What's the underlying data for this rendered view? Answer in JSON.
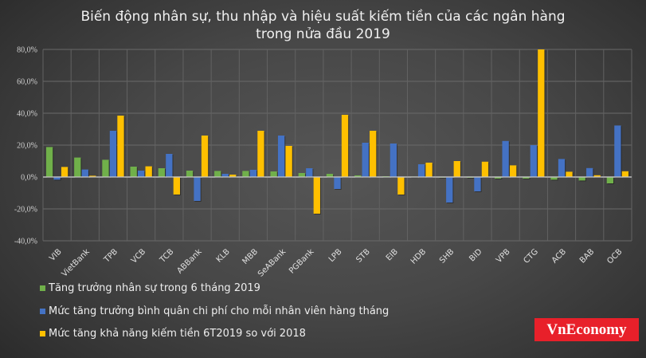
{
  "title": {
    "line1": "Biến động nhân sự, thu nhập và hiệu suất kiếm tiền của các ngân hàng",
    "line2": "trong nửa đầu 2019"
  },
  "logo": "VnEconomy",
  "legend": [
    {
      "label": "Tăng trưởng nhân sự trong 6 tháng 2019",
      "color": "#70b04a"
    },
    {
      "label": "Mức tăng trưởng bình quân chi phí cho mỗi nhân viên hàng tháng",
      "color": "#4472c4"
    },
    {
      "label": "Mức tăng khả năng kiếm tiền 6T2019 so với 2018",
      "color": "#ffc000"
    }
  ],
  "chart_data": {
    "type": "bar",
    "title": "Biến động nhân sự, thu nhập và hiệu suất kiếm tiền của các ngân hàng trong nửa đầu 2019",
    "xlabel": "",
    "ylabel": "",
    "ylim": [
      -40,
      80
    ],
    "yticks": [
      80,
      60,
      40,
      20,
      0,
      -20,
      -40
    ],
    "ytick_labels": [
      "80,0%",
      "60,0%",
      "40,0%",
      "20,0%",
      "0,0%",
      "-20,0%",
      "-40,0%"
    ],
    "grid": true,
    "legend_position": "bottom-left",
    "categories": [
      "VIB",
      "VietBank",
      "TPB",
      "VCB",
      "TCB",
      "ABBank",
      "KLB",
      "MBB",
      "SeABank",
      "PGBank",
      "LPB",
      "STB",
      "EIB",
      "HDB",
      "SHB",
      "BID",
      "VPB",
      "CTG",
      "ACB",
      "BAB",
      "OCB"
    ],
    "series": [
      {
        "name": "Tăng trưởng nhân sự trong 6 tháng 2019",
        "color": "#70b04a",
        "values": [
          18.8,
          12.2,
          10.8,
          6.5,
          5.5,
          4.0,
          3.8,
          3.8,
          3.5,
          2.5,
          2.0,
          1.0,
          0.5,
          0.3,
          0.0,
          -0.5,
          -1.0,
          -1.0,
          -1.7,
          -2.2,
          -4.0
        ]
      },
      {
        "name": "Mức tăng trưởng bình quân chi phí cho mỗi nhân viên hàng tháng",
        "color": "#4472c4",
        "values": [
          -1.7,
          4.7,
          29.0,
          4.0,
          14.5,
          -15.0,
          2.0,
          4.5,
          26.0,
          5.5,
          -7.5,
          21.5,
          21.0,
          8.0,
          -16.0,
          -9.0,
          22.6,
          20.0,
          11.3,
          5.6,
          32.3
        ]
      },
      {
        "name": "Mức tăng khả năng kiếm tiền 6T2019 so với 2018",
        "color": "#ffc000",
        "values": [
          6.3,
          0.8,
          38.5,
          6.7,
          -11.0,
          26.0,
          1.5,
          29.0,
          19.5,
          -23.0,
          39.0,
          29.0,
          -11.0,
          9.0,
          10.0,
          9.6,
          7.3,
          80.0,
          3.3,
          1.1,
          3.6
        ]
      }
    ]
  }
}
